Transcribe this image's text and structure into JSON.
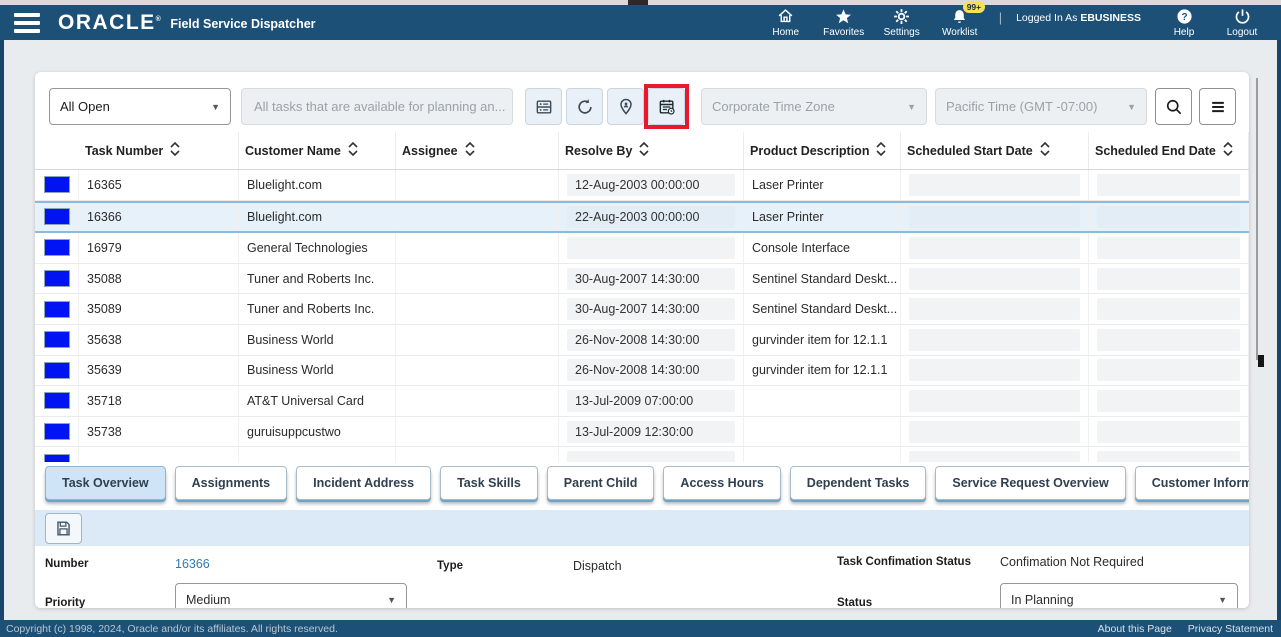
{
  "header": {
    "brand": "ORACLE",
    "app_title": "Field Service Dispatcher",
    "nav": [
      {
        "label": "Home"
      },
      {
        "label": "Favorites"
      },
      {
        "label": "Settings"
      },
      {
        "label": "Worklist",
        "badge": "99+"
      }
    ],
    "logged_in_prefix": "Logged In As",
    "user": "EBUSINESS",
    "help_label": "Help",
    "logout_label": "Logout"
  },
  "toolbar": {
    "filter_value": "All Open",
    "query_text": "All tasks that are available for planning an...",
    "timezone_mode": "Corporate Time Zone",
    "timezone_value": "Pacific Time (GMT -07:00)"
  },
  "table": {
    "columns": [
      "Task Number",
      "Customer Name",
      "Assignee",
      "Resolve By",
      "Product Description",
      "Scheduled Start Date",
      "Scheduled End Date"
    ],
    "rows": [
      {
        "task": "16365",
        "customer": "Bluelight.com",
        "assignee": "",
        "resolve_by": "12-Aug-2003 00:00:00",
        "product": "Laser Printer"
      },
      {
        "task": "16366",
        "customer": "Bluelight.com",
        "assignee": "",
        "resolve_by": "22-Aug-2003 00:00:00",
        "product": "Laser Printer"
      },
      {
        "task": "16979",
        "customer": "General Technologies",
        "assignee": "",
        "resolve_by": "",
        "product": "Console Interface"
      },
      {
        "task": "35088",
        "customer": "Tuner and Roberts Inc.",
        "assignee": "",
        "resolve_by": "30-Aug-2007 14:30:00",
        "product": "Sentinel Standard Deskt..."
      },
      {
        "task": "35089",
        "customer": "Tuner and Roberts Inc.",
        "assignee": "",
        "resolve_by": "30-Aug-2007 14:30:00",
        "product": "Sentinel Standard Deskt..."
      },
      {
        "task": "35638",
        "customer": "Business World",
        "assignee": "",
        "resolve_by": "26-Nov-2008 14:30:00",
        "product": "gurvinder item for 12.1.1"
      },
      {
        "task": "35639",
        "customer": "Business World",
        "assignee": "",
        "resolve_by": "26-Nov-2008 14:30:00",
        "product": "gurvinder item for 12.1.1"
      },
      {
        "task": "35718",
        "customer": "AT&T Universal Card",
        "assignee": "",
        "resolve_by": "13-Jul-2009 07:00:00",
        "product": ""
      },
      {
        "task": "35738",
        "customer": "guruisuppcustwo",
        "assignee": "",
        "resolve_by": "13-Jul-2009 12:30:00",
        "product": ""
      },
      {
        "task": "",
        "customer": "",
        "assignee": "",
        "resolve_by": "",
        "product": ""
      }
    ]
  },
  "tabs": [
    {
      "label": "Task Overview"
    },
    {
      "label": "Assignments"
    },
    {
      "label": "Incident Address"
    },
    {
      "label": "Task Skills"
    },
    {
      "label": "Parent Child"
    },
    {
      "label": "Access Hours"
    },
    {
      "label": "Dependent Tasks"
    },
    {
      "label": "Service Request Overview"
    },
    {
      "label": "Customer Information"
    }
  ],
  "details": {
    "number_label": "Number",
    "number_value": "16366",
    "type_label": "Type",
    "type_value": "Dispatch",
    "confirmation_label": "Task Confimation Status",
    "confirmation_value": "Confimation Not Required",
    "priority_label": "Priority",
    "priority_value": "Medium",
    "status_label": "Status",
    "status_value": "In Planning"
  },
  "footer": {
    "copyright": "Copyright (c) 1998, 2024, Oracle and/or its affiliates. All rights reserved.",
    "about_link": "About this Page",
    "privacy_link": "Privacy Statement"
  },
  "colors": {
    "header_blue": "#1d5077",
    "indicator_blue": "#0013f2",
    "highlight_red": "#e8192c",
    "selected_row": "#e7f1fa"
  }
}
